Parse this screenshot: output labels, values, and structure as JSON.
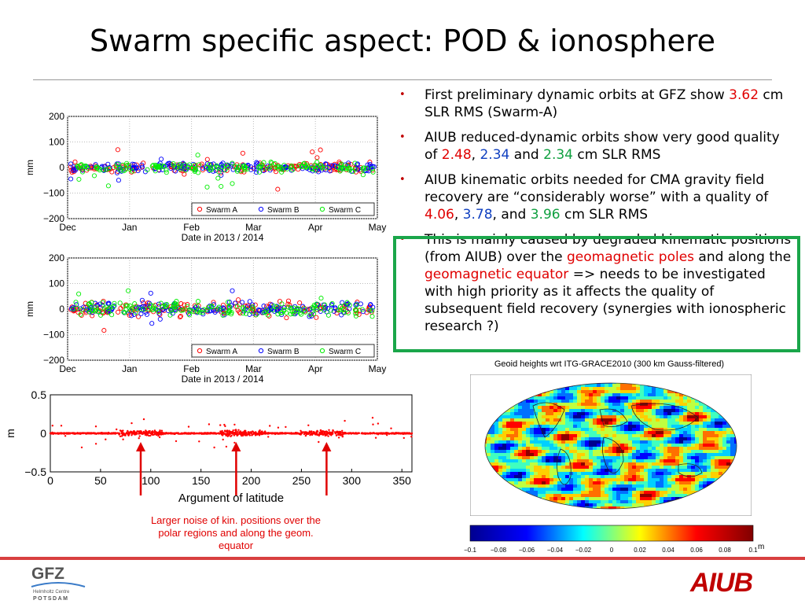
{
  "slide": {
    "title": "Swarm specific aspect: POD & ionosphere",
    "bullets": [
      [
        {
          "t": "First preliminary dynamic orbits at GFZ show "
        },
        {
          "t": "3.62",
          "c": "red"
        },
        {
          "t": " cm SLR RMS (Swarm-A)"
        }
      ],
      [
        {
          "t": "AIUB reduced-dynamic orbits show  very good quality of "
        },
        {
          "t": "2.48",
          "c": "red"
        },
        {
          "t": ", "
        },
        {
          "t": "2.34",
          "c": "blue"
        },
        {
          "t": " and "
        },
        {
          "t": "2.34",
          "c": "green"
        },
        {
          "t": " cm SLR RMS"
        }
      ],
      [
        {
          "t": "AIUB kinematic orbits needed for CMA gravity field recovery are “considerably worse” with a quality of "
        },
        {
          "t": "4.06",
          "c": "red"
        },
        {
          "t": ", "
        },
        {
          "t": "3.78",
          "c": "blue"
        },
        {
          "t": ", and "
        },
        {
          "t": "3.96",
          "c": "green"
        },
        {
          "t": " cm SLR RMS"
        }
      ],
      [
        {
          "t": "This is mainly caused by degraded kinematic positions (from AIUB) over the "
        },
        {
          "t": "geomagnetic poles",
          "c": "red"
        },
        {
          "t": " and along the "
        },
        {
          "t": "geomagnetic equator",
          "c": "red"
        },
        {
          "t": " => needs to be investigated with high priority as it affects the quality of subsequent field recovery (synergies with ionospheric research ?)"
        }
      ]
    ],
    "noise_caption": "Larger noise of kin. positions over the polar regions and along the geom. equator",
    "logos": {
      "gfz": "GFZ",
      "gfz_sub1": "Helmholtz Centre",
      "gfz_sub2": "POTSDAM",
      "aiub": "AIUB"
    },
    "colors": {
      "swarm_a": "#ff0000",
      "swarm_b": "#0000ff",
      "swarm_c": "#00ee00",
      "highlight_box": "#1aa64a"
    }
  },
  "chart_data": [
    {
      "type": "scatter",
      "title": "",
      "xlabel": "Date in 2013 / 2014",
      "ylabel": "mm",
      "x_ticks": [
        "Dec",
        "Jan",
        "Feb",
        "Mar",
        "Apr",
        "May"
      ],
      "y_ticks": [
        200,
        100,
        0,
        -100,
        -200
      ],
      "ylim": [
        -200,
        200
      ],
      "series": [
        {
          "name": "Swarm A",
          "color": "#ff0000",
          "spread": 30
        },
        {
          "name": "Swarm B",
          "color": "#0000ff",
          "spread": 30
        },
        {
          "name": "Swarm C",
          "color": "#00ee00",
          "spread": 30
        }
      ],
      "legend": "bottom-right",
      "grid": true
    },
    {
      "type": "scatter",
      "title": "",
      "xlabel": "Date in 2013 / 2014",
      "ylabel": "mm",
      "x_ticks": [
        "Dec",
        "Jan",
        "Feb",
        "Mar",
        "Apr",
        "May"
      ],
      "y_ticks": [
        200,
        100,
        0,
        -100,
        -200
      ],
      "ylim": [
        -200,
        200
      ],
      "series": [
        {
          "name": "Swarm A",
          "color": "#ff0000",
          "spread": 45
        },
        {
          "name": "Swarm B",
          "color": "#0000ff",
          "spread": 45
        },
        {
          "name": "Swarm C",
          "color": "#00ee00",
          "spread": 45
        }
      ],
      "legend": "bottom-right",
      "grid": true
    },
    {
      "type": "scatter",
      "title": "",
      "xlabel": "Argument of latitude",
      "ylabel": "m",
      "x_ticks": [
        0,
        50,
        100,
        150,
        200,
        250,
        300,
        350
      ],
      "y_ticks": [
        0.5,
        0,
        -0.5
      ],
      "xlim": [
        0,
        360
      ],
      "ylim": [
        -0.5,
        0.5
      ],
      "noise_regions": [
        90,
        190,
        270
      ],
      "arrows_at": [
        90,
        185,
        275
      ]
    },
    {
      "type": "heatmap",
      "title": "Geoid heights wrt ITG-GRACE2010 (300 km Gauss-filtered)",
      "colorbar_ticks": [
        "−0.1",
        "−0.08",
        "−0.06",
        "−0.04",
        "−0.02",
        "0",
        "0.02",
        "0.04",
        "0.06",
        "0.08",
        "0.1"
      ],
      "colorbar_unit": "m",
      "range": [
        -0.1,
        0.1
      ]
    }
  ]
}
